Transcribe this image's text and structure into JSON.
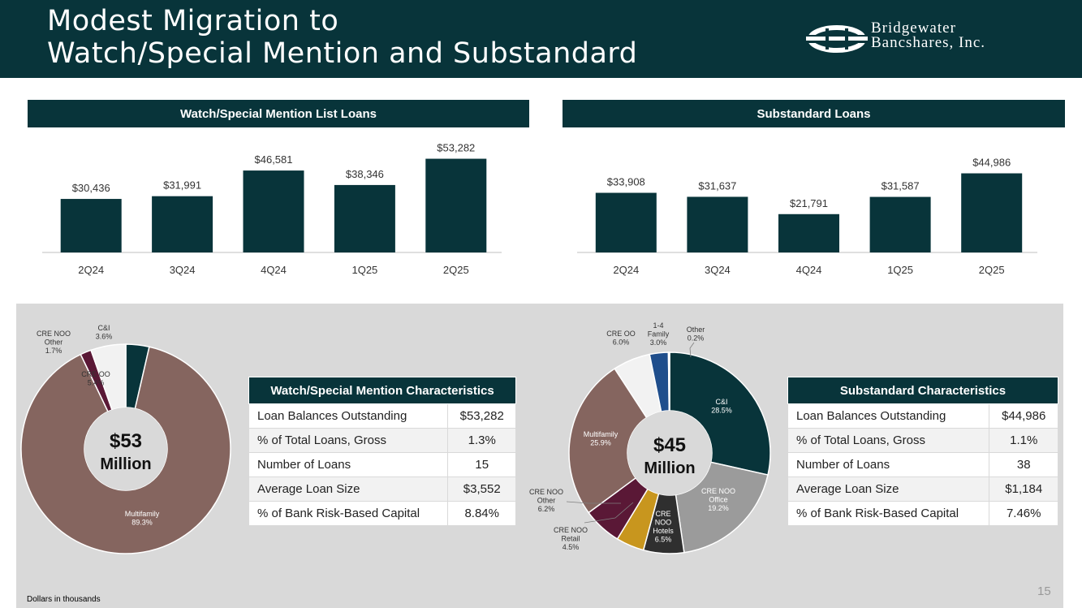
{
  "title_lines": [
    "Modest Migration to",
    "Watch/Special Mention and Substandard"
  ],
  "logo": {
    "line1": "Bridgewater",
    "line2": "Bancshares, Inc."
  },
  "watch": {
    "header": "Watch/Special Mention List Loans",
    "chart_data": {
      "type": "bar",
      "categories": [
        "2Q24",
        "3Q24",
        "4Q24",
        "1Q25",
        "2Q25"
      ],
      "values": [
        30436,
        31991,
        46581,
        38346,
        53282
      ],
      "labels": [
        "$30,436",
        "$31,991",
        "$46,581",
        "$38,346",
        "$53,282"
      ],
      "title": "Watch/Special Mention List Loans",
      "ylim": [
        0,
        60000
      ],
      "color": "#08343a"
    }
  },
  "sub": {
    "header": "Substandard Loans",
    "chart_data": {
      "type": "bar",
      "categories": [
        "2Q24",
        "3Q24",
        "4Q24",
        "1Q25",
        "2Q25"
      ],
      "values": [
        33908,
        31637,
        21791,
        31587,
        44986
      ],
      "labels": [
        "$33,908",
        "$31,637",
        "$21,791",
        "$31,587",
        "$44,986"
      ],
      "title": "Substandard Loans",
      "ylim": [
        0,
        60000
      ],
      "color": "#08343a"
    }
  },
  "watch_pie": {
    "center_line1": "$53",
    "center_line2": "Million",
    "chart_data": {
      "type": "pie",
      "slices": [
        {
          "label": [
            "C&I",
            "3.6%"
          ],
          "value": 3.6,
          "color": "#08343a"
        },
        {
          "label": [
            "Multifamily",
            "89.3%"
          ],
          "value": 89.3,
          "color": "#85655f"
        },
        {
          "label": [
            "CRE NOO",
            "Other",
            "1.7%"
          ],
          "value": 1.7,
          "color": "#5a1836"
        },
        {
          "label": [
            "CRE OO",
            "5.4%"
          ],
          "value": 5.4,
          "color": "#f2f2f2"
        }
      ]
    }
  },
  "sub_pie": {
    "center_line1": "$45",
    "center_line2": "Million",
    "chart_data": {
      "type": "pie",
      "slices": [
        {
          "label": [
            "C&I",
            "28.5%"
          ],
          "value": 28.5,
          "color": "#08343a"
        },
        {
          "label": [
            "CRE NOO",
            "Office",
            "19.2%"
          ],
          "value": 19.2,
          "color": "#9b9b9b"
        },
        {
          "label": [
            "CRE",
            "NOO",
            "Hotels",
            "6.5%"
          ],
          "value": 6.5,
          "color": "#2f2f2f"
        },
        {
          "label": [
            "CRE NOO",
            "Retail",
            "4.5%"
          ],
          "value": 4.5,
          "color": "#c8961e"
        },
        {
          "label": [
            "CRE NOO",
            "Other",
            "6.2%"
          ],
          "value": 6.2,
          "color": "#5a1836"
        },
        {
          "label": [
            "Multifamily",
            "25.9%"
          ],
          "value": 25.9,
          "color": "#85655f"
        },
        {
          "label": [
            "CRE OO",
            "6.0%"
          ],
          "value": 6.0,
          "color": "#f2f2f2"
        },
        {
          "label": [
            "1-4",
            "Family",
            "3.0%"
          ],
          "value": 3.0,
          "color": "#1f4e8c"
        },
        {
          "label": [
            "Other",
            "0.2%"
          ],
          "value": 0.2,
          "color": "#cfe3f2"
        }
      ]
    }
  },
  "watch_char": {
    "header": "Watch/Special Mention Characteristics",
    "rows": [
      {
        "label": "Loan Balances Outstanding",
        "value": "$53,282"
      },
      {
        "label": "% of Total Loans, Gross",
        "value": "1.3%"
      },
      {
        "label": "Number of Loans",
        "value": "15"
      },
      {
        "label": "Average Loan Size",
        "value": "$3,552"
      },
      {
        "label": "% of Bank Risk-Based Capital",
        "value": "8.84%"
      }
    ]
  },
  "sub_char": {
    "header": "Substandard Characteristics",
    "rows": [
      {
        "label": "Loan Balances Outstanding",
        "value": "$44,986"
      },
      {
        "label": "% of Total Loans, Gross",
        "value": "1.1%"
      },
      {
        "label": "Number of Loans",
        "value": "38"
      },
      {
        "label": "Average Loan Size",
        "value": "$1,184"
      },
      {
        "label": "% of Bank Risk-Based Capital",
        "value": "7.46%"
      }
    ]
  },
  "footnote": "Dollars in thousands",
  "page_number": "15"
}
